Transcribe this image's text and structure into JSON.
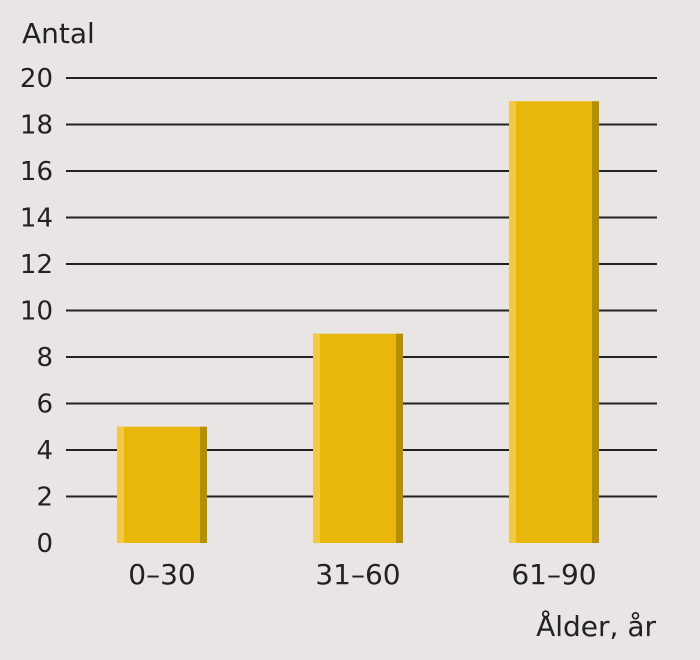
{
  "chart_data": {
    "type": "bar",
    "ylabel": "Antal",
    "xlabel": "Ålder, år",
    "categories": [
      "0–30",
      "31–60",
      "61–90"
    ],
    "values": [
      5,
      9,
      19
    ],
    "ylim": [
      0,
      20
    ],
    "yticks": [
      "0",
      "2",
      "4",
      "6",
      "8",
      "10",
      "12",
      "14",
      "16",
      "18",
      "20"
    ],
    "grid": true,
    "colors": {
      "background": "#e8e5e4",
      "bar": "#e9b70b",
      "bar_highlight": "#f1c94a",
      "bar_shadow": "#b58f00",
      "grid": "#222222"
    }
  }
}
